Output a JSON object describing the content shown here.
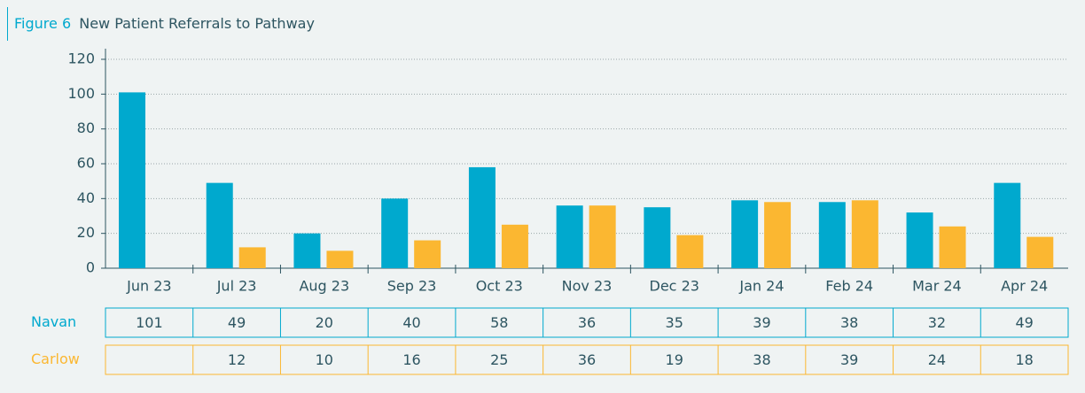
{
  "chart_data": {
    "type": "bar",
    "title_label": "Figure 6",
    "title": "New Patient Referrals to Pathway",
    "categories": [
      "Jun 23",
      "Jul 23",
      "Aug 23",
      "Sep 23",
      "Oct 23",
      "Nov 23",
      "Dec 23",
      "Jan 24",
      "Feb 24",
      "Mar 24",
      "Apr 24"
    ],
    "series": [
      {
        "name": "Navan",
        "color": "#00a9ce",
        "values": [
          101,
          49,
          20,
          40,
          58,
          36,
          35,
          39,
          38,
          32,
          49
        ]
      },
      {
        "name": "Carlow",
        "color": "#fbb731",
        "values": [
          null,
          12,
          10,
          16,
          25,
          36,
          19,
          38,
          39,
          24,
          18
        ]
      }
    ],
    "ylim": [
      0,
      120
    ],
    "yticks": [
      0,
      20,
      40,
      60,
      80,
      100,
      120
    ],
    "grid": true
  }
}
